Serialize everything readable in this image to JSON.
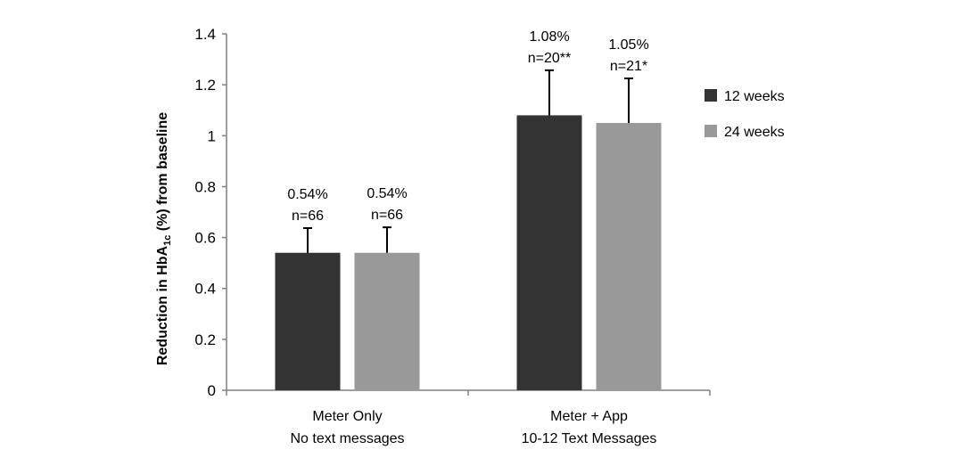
{
  "chart_data": {
    "type": "bar",
    "title": "",
    "xlabel": "",
    "ylabel_parts": {
      "prefix": "Reduction in HbA",
      "subscript": "1c",
      "suffix": " (%) from baseline"
    },
    "ylim": [
      0,
      1.4
    ],
    "yticks": [
      0,
      0.2,
      0.4,
      0.6,
      0.8,
      1,
      1.2,
      1.4
    ],
    "ytick_labels": [
      "0",
      "0.2",
      "0.4",
      "0.6",
      "0.8",
      "1",
      "1.2",
      "1.4"
    ],
    "categories": [
      {
        "line1": "Meter Only",
        "line2": "No text messages"
      },
      {
        "line1": "Meter + App",
        "line2": "10-12 Text Messages"
      }
    ],
    "series": [
      {
        "name": "12 weeks",
        "color": "#333333",
        "values": [
          0.54,
          1.08
        ],
        "errors": [
          0.097,
          0.177
        ],
        "labels": [
          {
            "pct": "0.54%",
            "n": "n=66"
          },
          {
            "pct": "1.08%",
            "n": "n=20**"
          }
        ]
      },
      {
        "name": "24 weeks",
        "color": "#999999",
        "values": [
          0.54,
          1.05
        ],
        "errors": [
          0.1,
          0.175
        ],
        "labels": [
          {
            "pct": "0.54%",
            "n": "n=66"
          },
          {
            "pct": "1.05%",
            "n": "n=21*"
          }
        ]
      }
    ],
    "grid": false,
    "legend_position": "right"
  }
}
